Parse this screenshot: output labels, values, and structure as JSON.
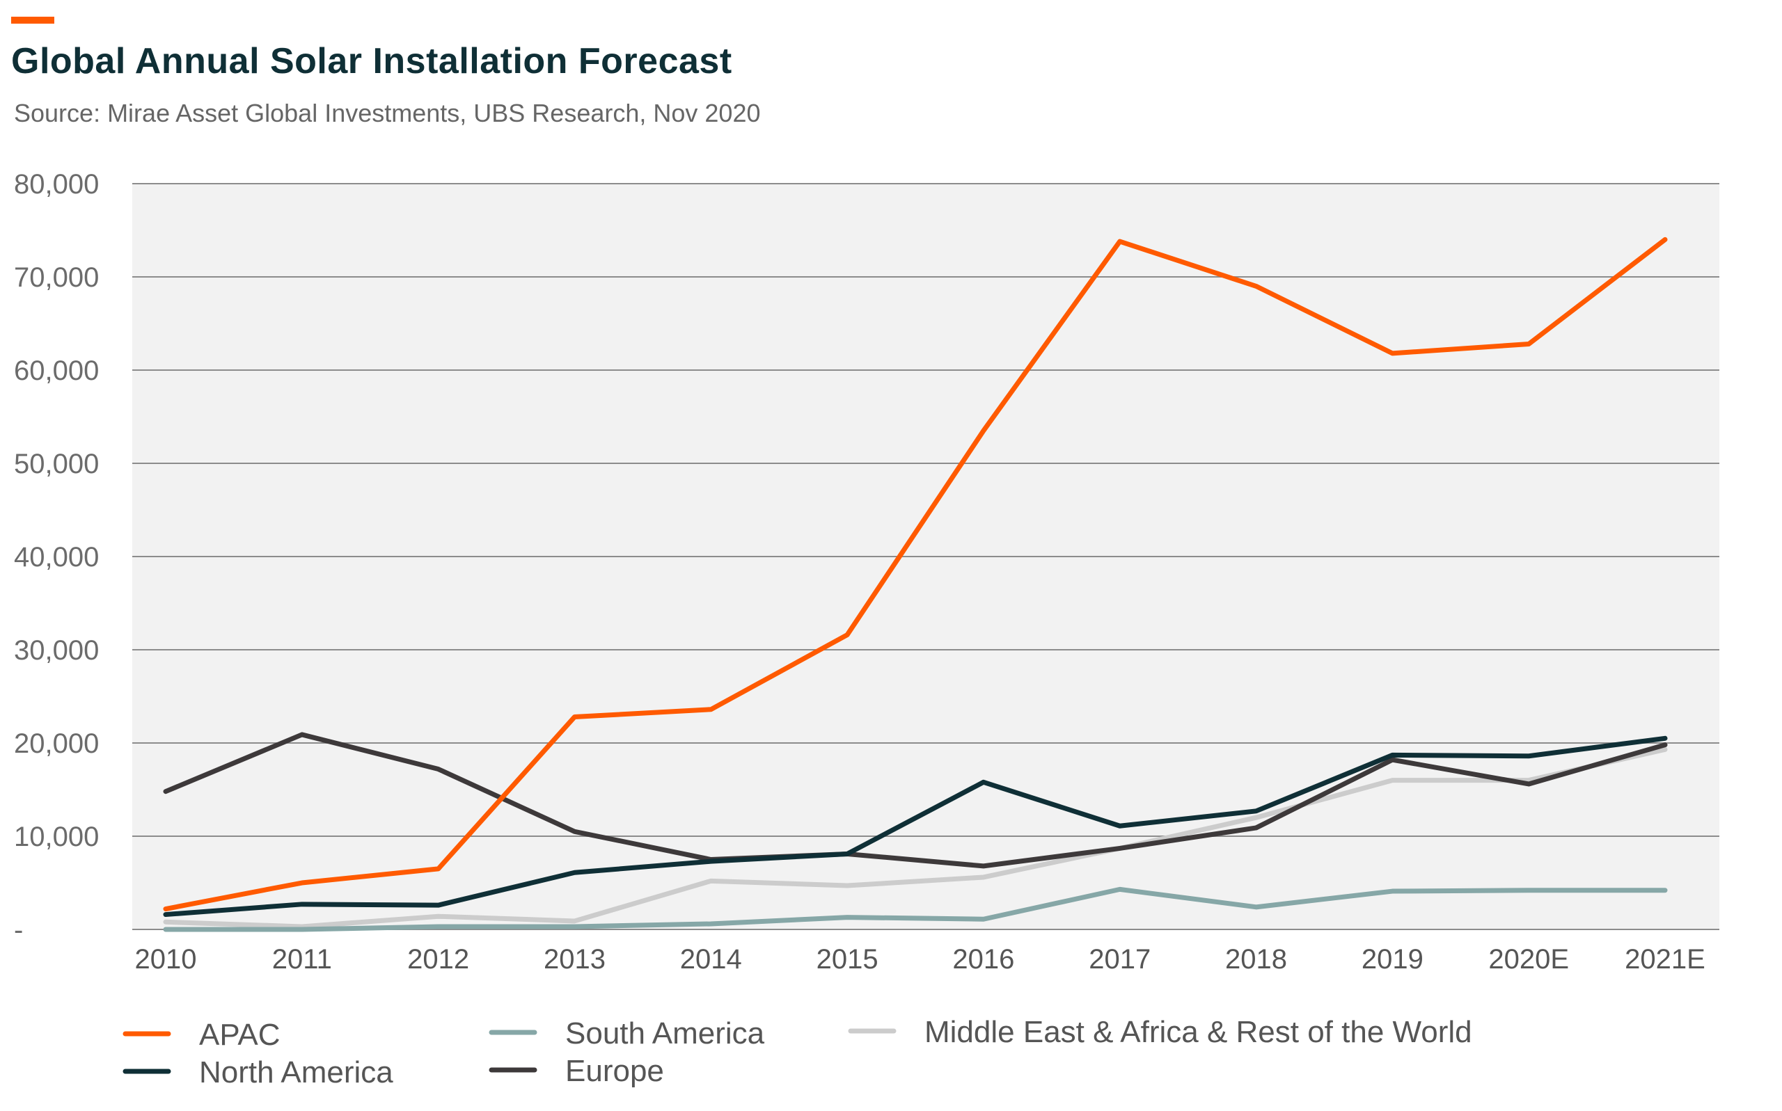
{
  "header": {
    "title": "Global Annual Solar Installation Forecast",
    "source": "Source: Mirae Asset Global Investments, UBS Research, Nov 2020"
  },
  "colors": {
    "accent": "#ff5a00",
    "plot_background": "#f2f2f2",
    "gridline": "#8c8c8c"
  },
  "chart_data": {
    "type": "line",
    "title": "Global Annual Solar Installation Forecast",
    "xlabel": "",
    "ylabel": "",
    "ylim": [
      0,
      80000
    ],
    "grid": true,
    "legend_position": "bottom",
    "categories": [
      "2010",
      "2011",
      "2012",
      "2013",
      "2014",
      "2015",
      "2016",
      "2017",
      "2018",
      "2019",
      "2020E",
      "2021E"
    ],
    "y_ticks": [
      {
        "value": 0,
        "label": "-"
      },
      {
        "value": 10000,
        "label": "10,000"
      },
      {
        "value": 20000,
        "label": "20,000"
      },
      {
        "value": 30000,
        "label": "30,000"
      },
      {
        "value": 40000,
        "label": "40,000"
      },
      {
        "value": 50000,
        "label": "50,000"
      },
      {
        "value": 60000,
        "label": "60,000"
      },
      {
        "value": 70000,
        "label": "70,000"
      },
      {
        "value": 80000,
        "label": "80,000"
      }
    ],
    "series": [
      {
        "name": "APAC",
        "color": "#ff5a00",
        "values": [
          2200,
          5000,
          6500,
          22800,
          23600,
          31600,
          53500,
          73800,
          69000,
          61800,
          62800,
          74000
        ]
      },
      {
        "name": "North America",
        "color": "#0f2f36",
        "values": [
          1600,
          2700,
          2600,
          6100,
          7300,
          8100,
          15800,
          11100,
          12700,
          18700,
          18600,
          20500
        ]
      },
      {
        "name": "South America",
        "color": "#86a7a7",
        "values": [
          0,
          0,
          300,
          300,
          600,
          1300,
          1100,
          4300,
          2400,
          4100,
          4200,
          4200
        ]
      },
      {
        "name": "Europe",
        "color": "#3d393a",
        "values": [
          14800,
          20900,
          17200,
          10500,
          7500,
          8100,
          6800,
          8700,
          10900,
          18200,
          15600,
          19800
        ]
      },
      {
        "name": "Middle East & Africa & Rest of the World",
        "color": "#cccccc",
        "values": [
          800,
          300,
          1400,
          900,
          5200,
          4700,
          5600,
          8700,
          12000,
          16000,
          16000,
          19300
        ]
      }
    ]
  }
}
